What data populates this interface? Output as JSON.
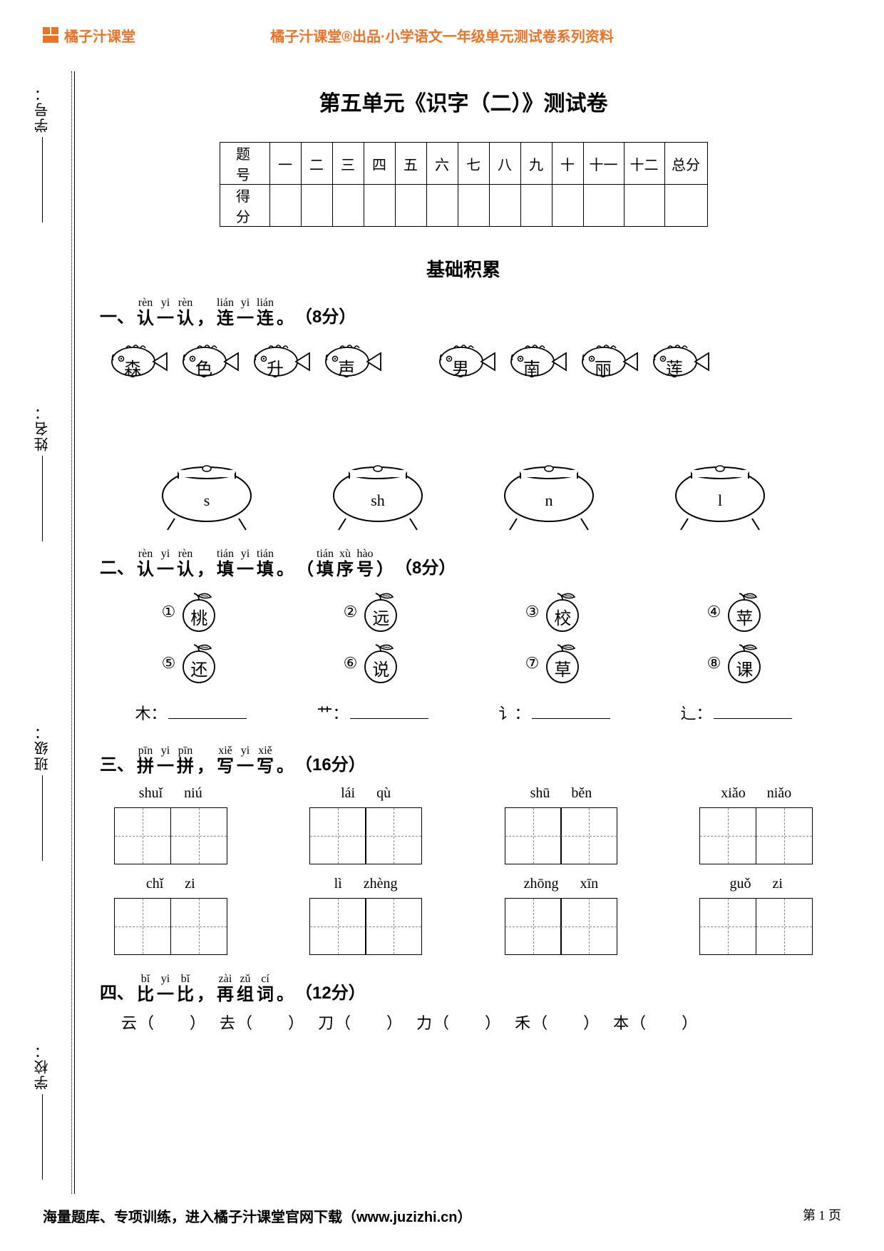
{
  "brand": {
    "name": "橘子汁课堂",
    "color": "#e8742a"
  },
  "header_center": "橘子汁课堂®出品·小学语文一年级单元测试卷系列资料",
  "footer_left": "海量题库、专项训练，进入橘子汁课堂官网下载（www.juzizhi.cn）",
  "footer_page": "第 1 页",
  "side_labels": [
    "学号：",
    "姓名：",
    "班级：",
    "学校："
  ],
  "title": "第五单元《识字（二）》测试卷",
  "score_table": {
    "row1_head": "题 号",
    "row2_head": "得 分",
    "cols": [
      "一",
      "二",
      "三",
      "四",
      "五",
      "六",
      "七",
      "八",
      "九",
      "十",
      "十一",
      "十二"
    ],
    "total": "总分"
  },
  "section_header": "基础积累",
  "q1": {
    "num": "一、",
    "ruby": [
      {
        "p": "rèn",
        "c": "认"
      },
      {
        "p": "yi",
        "c": "一"
      },
      {
        "p": "rèn",
        "c": "认"
      },
      {
        "p": "",
        "c": "，"
      },
      {
        "p": "lián",
        "c": "连"
      },
      {
        "p": "yi",
        "c": "一"
      },
      {
        "p": "lián",
        "c": "连"
      },
      {
        "p": "",
        "c": "。"
      }
    ],
    "pts": "（8分）",
    "fish": [
      "森",
      "色",
      "升",
      "声",
      "男",
      "南",
      "丽",
      "莲"
    ],
    "pots": [
      "s",
      "sh",
      "n",
      "l"
    ]
  },
  "q2": {
    "num": "二、",
    "ruby": [
      {
        "p": "rèn",
        "c": "认"
      },
      {
        "p": "yi",
        "c": "一"
      },
      {
        "p": "rèn",
        "c": "认"
      },
      {
        "p": "",
        "c": "，"
      },
      {
        "p": "tián",
        "c": "填"
      },
      {
        "p": "yi",
        "c": "一"
      },
      {
        "p": "tián",
        "c": "填"
      },
      {
        "p": "",
        "c": "。"
      },
      {
        "p": "",
        "c": "（"
      },
      {
        "p": "tián",
        "c": "填"
      },
      {
        "p": "xù",
        "c": "序"
      },
      {
        "p": "hào",
        "c": "号"
      },
      {
        "p": "",
        "c": "）"
      }
    ],
    "pts": "（8分）",
    "fruits_top": [
      {
        "n": "①",
        "c": "桃"
      },
      {
        "n": "②",
        "c": "远"
      },
      {
        "n": "③",
        "c": "校"
      },
      {
        "n": "④",
        "c": "苹"
      }
    ],
    "fruits_bot": [
      {
        "n": "⑤",
        "c": "还"
      },
      {
        "n": "⑥",
        "c": "说"
      },
      {
        "n": "⑦",
        "c": "草"
      },
      {
        "n": "⑧",
        "c": "课"
      }
    ],
    "radicals": [
      "木：",
      "艹：",
      "讠：",
      "辶："
    ]
  },
  "q3": {
    "num": "三、",
    "ruby": [
      {
        "p": "pīn",
        "c": "拼"
      },
      {
        "p": "yi",
        "c": "一"
      },
      {
        "p": "pīn",
        "c": "拼"
      },
      {
        "p": "",
        "c": "，"
      },
      {
        "p": "xiě",
        "c": "写"
      },
      {
        "p": "yi",
        "c": "一"
      },
      {
        "p": "xiě",
        "c": "写"
      },
      {
        "p": "",
        "c": "。"
      }
    ],
    "pts": "（16分）",
    "row1": [
      [
        "shuǐ",
        "niú"
      ],
      [
        "lái",
        "qù"
      ],
      [
        "shū",
        "běn"
      ],
      [
        "xiǎo",
        "niǎo"
      ]
    ],
    "row2": [
      [
        "chǐ",
        "zi"
      ],
      [
        "lì",
        "zhèng"
      ],
      [
        "zhōng",
        "xīn"
      ],
      [
        "guǒ",
        "zi"
      ]
    ]
  },
  "q4": {
    "num": "四、",
    "ruby": [
      {
        "p": "bǐ",
        "c": "比"
      },
      {
        "p": "yi",
        "c": "一"
      },
      {
        "p": "bǐ",
        "c": "比"
      },
      {
        "p": "",
        "c": "，"
      },
      {
        "p": "zài",
        "c": "再"
      },
      {
        "p": "zǔ",
        "c": "组"
      },
      {
        "p": "cí",
        "c": "词"
      },
      {
        "p": "",
        "c": "。"
      }
    ],
    "pts": "（12分）",
    "items": [
      "云（　　）",
      "去（　　）",
      "刀（　　）",
      "力（　　）",
      "禾（　　）",
      "本（　　）"
    ]
  }
}
